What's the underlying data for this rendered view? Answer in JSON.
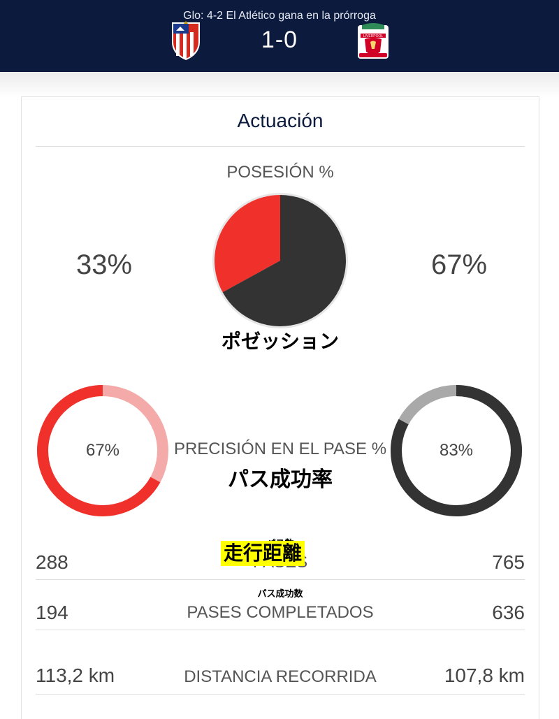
{
  "header": {
    "aggregate_text": "Glo: 4-2 El Atlético gana en la prórroga",
    "score": "1-0",
    "home_crest_icon": "atletico-madrid-crest",
    "away_crest_icon": "liverpool-crest",
    "away_crest_text": "LIVERPOOL"
  },
  "card": {
    "title": "Actuación"
  },
  "possession": {
    "label": "POSESIÓN %",
    "jp_label": "ポゼッション",
    "home_pct_text": "33%",
    "away_pct_text": "67%",
    "home_value": 33,
    "away_value": 67,
    "home_color": "#f0302a",
    "away_color": "#333333"
  },
  "pass_accuracy": {
    "label": "PRECISIÓN EN EL PASE %",
    "jp_label": "パス成功率",
    "home_pct_text": "67%",
    "away_pct_text": "83%",
    "home_value": 67,
    "away_value": 83,
    "home_color": "#f0302a",
    "home_track_color": "#f4aaa8",
    "away_color": "#333333",
    "away_track_color": "#a9a9a9"
  },
  "stats": [
    {
      "jp_label": "パス数",
      "label": "PASES",
      "home": "288",
      "away": "765"
    },
    {
      "jp_label": "パス成功数",
      "label": "PASES COMPLETADOS",
      "home": "194",
      "away": "636"
    },
    {
      "jp_label": "走行距離",
      "label": "DISTANCIA RECORRIDA",
      "home": "113,2 km",
      "away": "107,8 km"
    }
  ]
}
